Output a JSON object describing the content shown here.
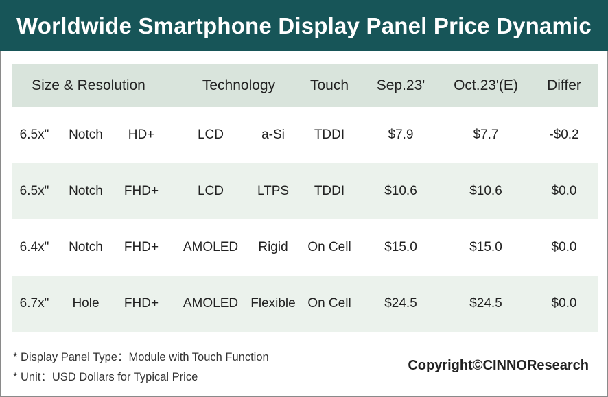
{
  "title": "Worldwide Smartphone Display Panel Price Dynamic",
  "chart_data": {
    "type": "table",
    "columns": [
      "Size & Resolution",
      "Technology",
      "Touch",
      "Sep.23'",
      "Oct.23'(E)",
      "Differ"
    ],
    "rows": [
      {
        "size": "6.5x\"",
        "form": "Notch",
        "resolution": "HD+",
        "tech": "LCD",
        "backplane": "a-Si",
        "touch": "TDDI",
        "sep": "$7.9",
        "oct": "$7.7",
        "differ": "-$0.2"
      },
      {
        "size": "6.5x\"",
        "form": "Notch",
        "resolution": "FHD+",
        "tech": "LCD",
        "backplane": "LTPS",
        "touch": "TDDI",
        "sep": "$10.6",
        "oct": "$10.6",
        "differ": "$0.0"
      },
      {
        "size": "6.4x\"",
        "form": "Notch",
        "resolution": "FHD+",
        "tech": "AMOLED",
        "backplane": "Rigid",
        "touch": "On Cell",
        "sep": "$15.0",
        "oct": "$15.0",
        "differ": "$0.0"
      },
      {
        "size": "6.7x\"",
        "form": "Hole",
        "resolution": "FHD+",
        "tech": "AMOLED",
        "backplane": "Flexible",
        "touch": "On Cell",
        "sep": "$24.5",
        "oct": "$24.5",
        "differ": "$0.0"
      }
    ],
    "sep_values": [
      7.9,
      10.6,
      15.0,
      24.5
    ],
    "oct_values": [
      7.7,
      10.6,
      15.0,
      24.5
    ],
    "differ_values": [
      -0.2,
      0.0,
      0.0,
      0.0
    ]
  },
  "notes": [
    "* Display Panel Type：Module with Touch Function",
    "* Unit：USD Dollars for Typical Price"
  ],
  "copyright": "Copyright©CINNOResearch",
  "colors": {
    "title_bg": "#175558",
    "header_bg": "#d9e4dc",
    "shaded_row_bg": "#ebf2ec"
  }
}
